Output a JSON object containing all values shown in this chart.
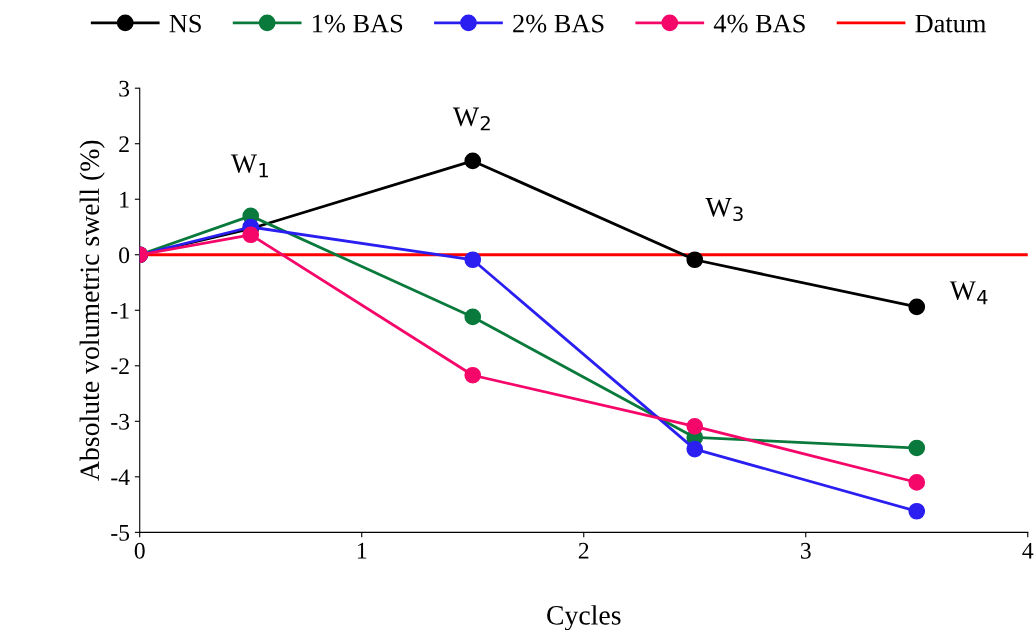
{
  "chart_data": {
    "type": "line",
    "xlabel": "Cycles",
    "ylabel": "Absolute volumetric swell (%)",
    "x": [
      0,
      0.5,
      1.5,
      2.5,
      3.5
    ],
    "series": [
      {
        "name": "NS",
        "color": "#000000",
        "values": [
          0,
          0.47,
          1.69,
          -0.09,
          -0.94
        ]
      },
      {
        "name": "1% BAS",
        "color": "#0a7a3c",
        "values": [
          0,
          0.7,
          -1.12,
          -3.29,
          -3.48
        ]
      },
      {
        "name": "2% BAS",
        "color": "#2a1ff0",
        "values": [
          0,
          0.5,
          -0.09,
          -3.5,
          -4.62
        ]
      },
      {
        "name": "4% BAS",
        "color": "#f5076a",
        "values": [
          0,
          0.36,
          -2.17,
          -3.09,
          -4.1
        ]
      }
    ],
    "ref_lines": [
      {
        "axis": "y",
        "value": 0,
        "label": "Datum",
        "color": "#ff0000",
        "line_style": "solid"
      }
    ],
    "annotations": [
      "W$_{1}$",
      "W$_{2}$",
      "W$_{3}$",
      "W$_{4}$"
    ],
    "xlim": [
      0,
      4
    ],
    "ylim": [
      -5,
      3
    ],
    "xticks": [
      0,
      1,
      2,
      3,
      4
    ],
    "yticks": [
      -5,
      -4,
      -3,
      -2,
      -1,
      0,
      1,
      2,
      3
    ],
    "grid": false,
    "legend": "top",
    "marker": "circle",
    "line_style": "solid"
  }
}
